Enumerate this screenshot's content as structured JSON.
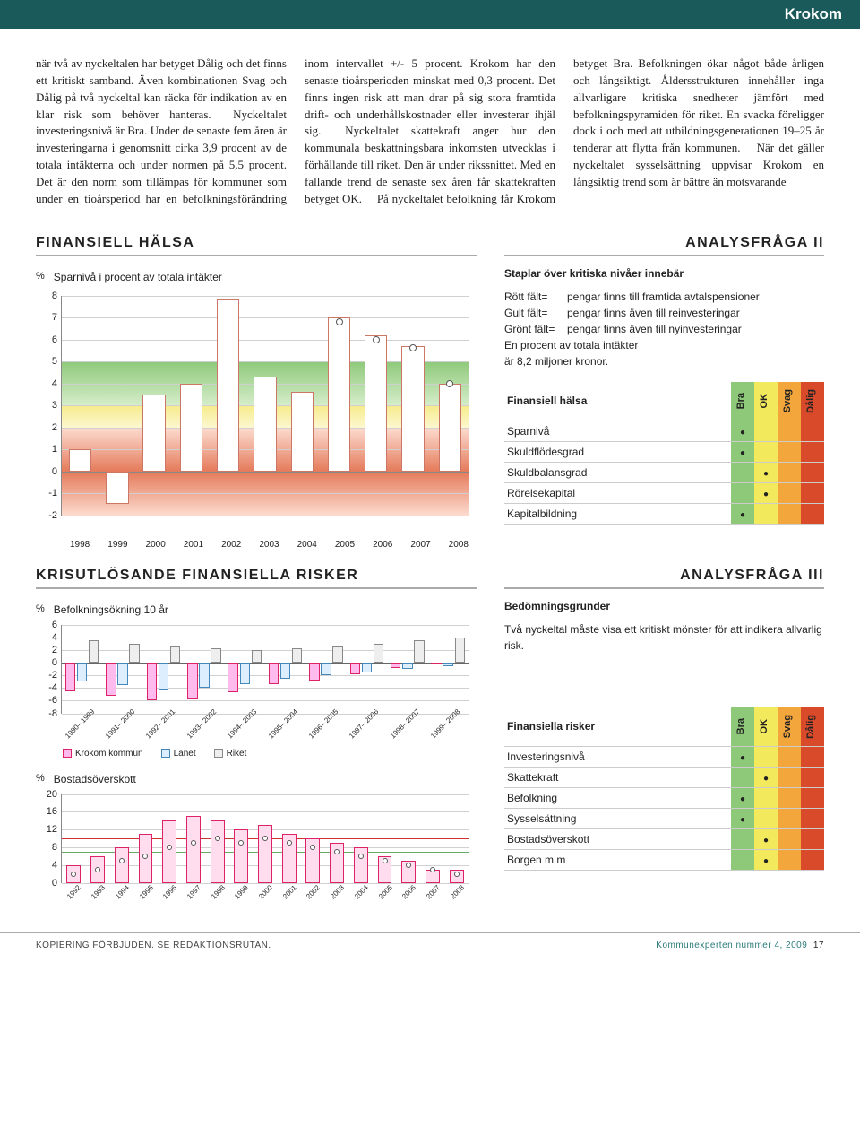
{
  "header": {
    "title": "Krokom"
  },
  "body_text": "när två av nyckeltalen har betyget Dålig och det finns ett kritiskt samband. Även kombinationen Svag och Dålig på två nyckeltal kan räcka för indikation av en klar risk som behöver hanteras.\n Nyckeltalet investeringsnivå är Bra. Under de senaste fem åren är investeringarna i genomsnitt cirka 3,9 procent av de totala intäkterna och under normen på 5,5 procent. Det är den norm som tillämpas för kommuner som under en tioårsperiod har en befolkningsförändring inom intervallet +/- 5 procent. Krokom har den senaste tioårsperioden minskat med 0,3 procent. Det finns ingen risk att man drar på sig stora framtida drift- och underhållskostnader eller investerar ihjäl sig.\n Nyckeltalet skattekraft anger hur den kommunala beskattningsbara inkomsten utvecklas i förhållande till riket. Den är under rikssnittet. Med en fallande trend de senaste sex åren får skattekraften betyget OK.\n På nyckeltalet befolkning får Krokom betyget Bra. Befolkningen ökar något både årligen och långsiktigt. Åldersstrukturen innehåller inga allvarligare kritiska snedheter jämfört med befolkningspyramiden för riket. En svacka föreligger dock i och med att utbildningsgenerationen 19–25 år tenderar att flytta från kommunen.\n När det gäller nyckeltalet sysselsättning uppvisar Krokom en långsiktig trend som är bättre än motsvarande",
  "section1": {
    "left_title": "FINANSIELL HÄLSA",
    "right_title": "ANALYSFRÅGA II"
  },
  "chart1": {
    "title": "Sparnivå i procent av totala intäkter",
    "y_unit": "%",
    "ymin": -2,
    "ymax": 8,
    "yticks": [
      -2,
      -1,
      0,
      1,
      2,
      3,
      4,
      5,
      6,
      7,
      8
    ],
    "years": [
      "1998",
      "1999",
      "2000",
      "2001",
      "2002",
      "2003",
      "2004",
      "2005",
      "2006",
      "2007",
      "2008"
    ],
    "values": [
      1.0,
      -1.5,
      3.5,
      4.0,
      7.8,
      4.3,
      3.6,
      7.0,
      6.2,
      5.7,
      4.0
    ],
    "markers_years": [
      "2005",
      "2006",
      "2007",
      "2008"
    ],
    "markers_values": [
      6.8,
      6.0,
      5.6,
      4.0
    ],
    "zones": {
      "green": {
        "from": 3,
        "to": 5,
        "color_top": "#8ec97a",
        "color_bot": "#d5edc9"
      },
      "yellow": {
        "from": 2,
        "to": 3
      },
      "red": {
        "from": -2,
        "to": 2
      }
    },
    "bar_border": "#cc7766",
    "bar_fill": "#ffffff"
  },
  "legend1": {
    "title": "Staplar över kritiska nivåer innebär",
    "rows": [
      {
        "label": "Rött fält=",
        "text": "pengar finns till framtida avtalspensioner"
      },
      {
        "label": "Gult fält=",
        "text": "pengar finns även till reinvesteringar"
      },
      {
        "label": "Grönt fält=",
        "text": "pengar finns även till nyinvesteringar"
      }
    ],
    "footnote1": "En procent av totala intäkter",
    "footnote2": "är 8,2 miljoner kronor."
  },
  "rating_cols": [
    "Bra",
    "OK",
    "Svag",
    "Dålig"
  ],
  "rating1": {
    "title": "Finansiell hälsa",
    "rows": [
      {
        "label": "Sparnivå",
        "col": 0
      },
      {
        "label": "Skuldflödesgrad",
        "col": 0
      },
      {
        "label": "Skuldbalansgrad",
        "col": 1
      },
      {
        "label": "Rörelsekapital",
        "col": 1
      },
      {
        "label": "Kapitalbildning",
        "col": 0
      }
    ]
  },
  "section2": {
    "left_title": "KRISUTLÖSANDE FINANSIELLA RISKER",
    "right_title": "ANALYSFRÅGA III"
  },
  "chart2": {
    "title": "Befolkningsökning 10 år",
    "y_unit": "%",
    "ymin": -8,
    "ymax": 6,
    "yticks": [
      -8,
      -6,
      -4,
      -2,
      0,
      2,
      4,
      6
    ],
    "periods": [
      "1990–1999",
      "1991–2000",
      "1992–2001",
      "1993–2002",
      "1994–2003",
      "1995–2004",
      "1996–2005",
      "1997–2006",
      "1998–2007",
      "1999–2008"
    ],
    "krokom": [
      -4.5,
      -5.2,
      -6.0,
      -5.8,
      -4.6,
      -3.4,
      -2.8,
      -1.8,
      -0.8,
      -0.3
    ],
    "lanet": [
      -3.0,
      -3.6,
      -4.2,
      -4.0,
      -3.4,
      -2.6,
      -2.0,
      -1.5,
      -1.0,
      -0.6
    ],
    "riket": [
      3.5,
      3.0,
      2.5,
      2.2,
      2.0,
      2.2,
      2.5,
      3.0,
      3.5,
      4.0
    ],
    "legend": {
      "k": "Krokom kommun",
      "l": "Länet",
      "r": "Riket"
    }
  },
  "chart3": {
    "title": "Bostadsöverskott",
    "y_unit": "%",
    "ymin": 0,
    "ymax": 20,
    "yticks": [
      0,
      4,
      8,
      12,
      16,
      20
    ],
    "years": [
      "1992",
      "1993",
      "1994",
      "1995",
      "1996",
      "1997",
      "1998",
      "1999",
      "2000",
      "2001",
      "2002",
      "2003",
      "2004",
      "2005",
      "2006",
      "2007",
      "2008"
    ],
    "values": [
      4,
      6,
      8,
      11,
      14,
      15,
      14,
      12,
      13,
      11,
      10,
      9,
      8,
      6,
      5,
      3,
      3
    ],
    "markers": [
      2,
      3,
      5,
      6,
      8,
      9,
      10,
      9,
      10,
      9,
      8,
      7,
      6,
      5,
      4,
      3,
      2
    ],
    "ref_lines": [
      {
        "y": 10,
        "color": "#cc3333"
      },
      {
        "y": 7,
        "color": "#66aa66"
      }
    ]
  },
  "legend2": {
    "title": "Bedömningsgrunder",
    "text": "Två nyckeltal måste visa ett kritiskt mönster för att indikera allvarlig risk."
  },
  "rating2": {
    "title": "Finansiella risker",
    "rows": [
      {
        "label": "Investeringsnivå",
        "col": 0
      },
      {
        "label": "Skattekraft",
        "col": 1
      },
      {
        "label": "Befolkning",
        "col": 0
      },
      {
        "label": "Sysselsättning",
        "col": 0
      },
      {
        "label": "Bostadsöverskott",
        "col": 1
      },
      {
        "label": "Borgen m m",
        "col": 1
      }
    ]
  },
  "footer": {
    "left": "KOPIERING FÖRBJUDEN. SE REDAKTIONSRUTAN.",
    "right": "Kommunexperten nummer 4, 2009",
    "page": "17"
  },
  "colors": {
    "header_bg": "#1a5a5a",
    "bra": "#8ec97a",
    "ok": "#f3e95c",
    "svag": "#f2a63c",
    "dalig": "#d94a2b"
  }
}
